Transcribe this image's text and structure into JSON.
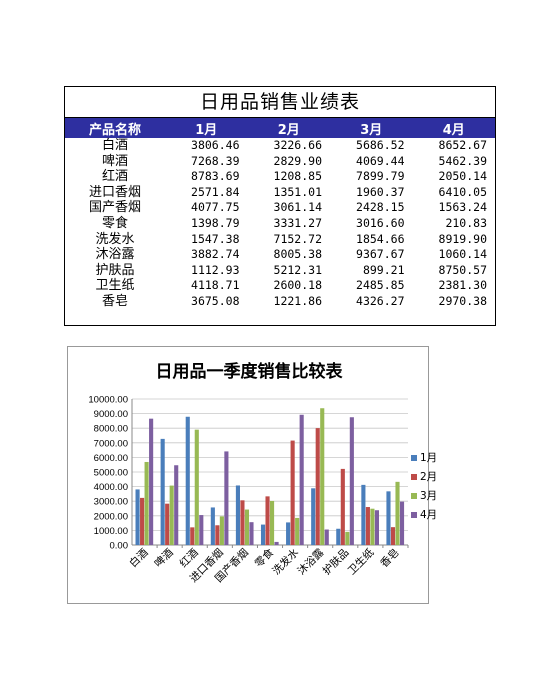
{
  "table": {
    "title": "日用品销售业绩表",
    "headers": [
      "产品名称",
      "1月",
      "2月",
      "3月",
      "4月"
    ],
    "rows": [
      {
        "name": "白酒",
        "m1": "3806.46",
        "m2": "3226.66",
        "m3": "5686.52",
        "m4": "8652.67"
      },
      {
        "name": "啤酒",
        "m1": "7268.39",
        "m2": "2829.90",
        "m3": "4069.44",
        "m4": "5462.39"
      },
      {
        "name": "红酒",
        "m1": "8783.69",
        "m2": "1208.85",
        "m3": "7899.79",
        "m4": "2050.14"
      },
      {
        "name": "进口香烟",
        "m1": "2571.84",
        "m2": "1351.01",
        "m3": "1960.37",
        "m4": "6410.05"
      },
      {
        "name": "国产香烟",
        "m1": "4077.75",
        "m2": "3061.14",
        "m3": "2428.15",
        "m4": "1563.24"
      },
      {
        "name": "零食",
        "m1": "1398.79",
        "m2": "3331.27",
        "m3": "3016.60",
        "m4": "210.83"
      },
      {
        "name": "洗发水",
        "m1": "1547.38",
        "m2": "7152.72",
        "m3": "1854.66",
        "m4": "8919.90"
      },
      {
        "name": "沐浴露",
        "m1": "3882.74",
        "m2": "8005.38",
        "m3": "9367.67",
        "m4": "1060.14"
      },
      {
        "name": "护肤品",
        "m1": "1112.93",
        "m2": "5212.31",
        "m3": "899.21",
        "m4": "8750.57"
      },
      {
        "name": "卫生纸",
        "m1": "4118.71",
        "m2": "2600.18",
        "m3": "2485.85",
        "m4": "2381.30"
      },
      {
        "name": "香皂",
        "m1": "3675.08",
        "m2": "1221.86",
        "m3": "4326.27",
        "m4": "2970.38"
      }
    ]
  },
  "chart_data": {
    "type": "bar",
    "title": "日用品一季度销售比较表",
    "categories": [
      "白酒",
      "啤酒",
      "红酒",
      "进口香烟",
      "国产香烟",
      "零食",
      "洗发水",
      "沐浴露",
      "护肤品",
      "卫生纸",
      "香皂"
    ],
    "series": [
      {
        "name": "1月",
        "color": "#4a7ebb",
        "values": [
          3806.46,
          7268.39,
          8783.69,
          2571.84,
          4077.75,
          1398.79,
          1547.38,
          3882.74,
          1112.93,
          4118.71,
          3675.08
        ]
      },
      {
        "name": "2月",
        "color": "#be4b48",
        "values": [
          3226.66,
          2829.9,
          1208.85,
          1351.01,
          3061.14,
          3331.27,
          7152.72,
          8005.38,
          5212.31,
          2600.18,
          1221.86
        ]
      },
      {
        "name": "3月",
        "color": "#98b954",
        "values": [
          5686.52,
          4069.44,
          7899.79,
          1960.37,
          2428.15,
          3016.6,
          1854.66,
          9367.67,
          899.21,
          2485.85,
          4326.27
        ]
      },
      {
        "name": "4月",
        "color": "#7d5fa0",
        "values": [
          8652.67,
          5462.39,
          2050.14,
          6410.05,
          1563.24,
          210.83,
          8919.9,
          1060.14,
          8750.57,
          2381.3,
          2970.38
        ]
      }
    ],
    "ylim": [
      0,
      10000
    ],
    "yticks": [
      "0.00",
      "1000.00",
      "2000.00",
      "3000.00",
      "4000.00",
      "5000.00",
      "6000.00",
      "7000.00",
      "8000.00",
      "9000.00",
      "10000.00"
    ],
    "grid": true,
    "legend": "right"
  }
}
